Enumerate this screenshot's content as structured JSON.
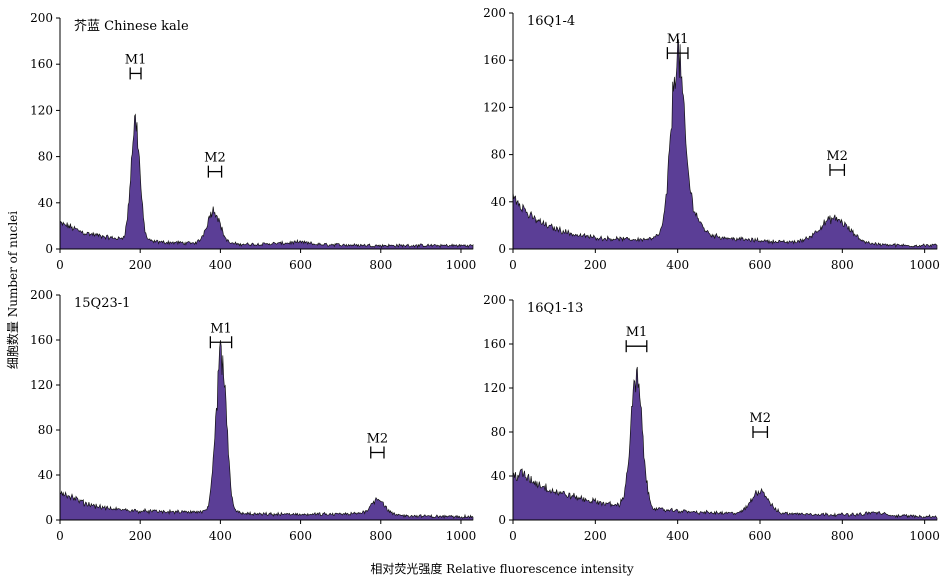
{
  "figure": {
    "ylabel": "细胞数量 Number of nuclei",
    "xlabel": "相对荧光强度 Relative fluorescence intensity"
  },
  "chart_data": [
    {
      "type": "area",
      "title": "芥蓝 Chinese kale",
      "xlim": [
        0,
        1030
      ],
      "ylim": [
        0,
        200
      ],
      "xticks": [
        0,
        200,
        400,
        600,
        800,
        1000
      ],
      "yticks": [
        0,
        40,
        80,
        120,
        160,
        200
      ],
      "fill_color": "#5b3e96",
      "peaks": [
        {
          "x": 188,
          "height": 103,
          "width": 11
        },
        {
          "x": 383,
          "height": 29,
          "width": 16
        }
      ],
      "baseline": [
        [
          0,
          22
        ],
        [
          20,
          20
        ],
        [
          60,
          14
        ],
        [
          120,
          10
        ],
        [
          170,
          8
        ],
        [
          250,
          6
        ],
        [
          330,
          5
        ],
        [
          480,
          4
        ],
        [
          560,
          5
        ],
        [
          600,
          6
        ],
        [
          640,
          4
        ],
        [
          800,
          3
        ],
        [
          900,
          3
        ],
        [
          1030,
          3
        ]
      ],
      "gates": [
        {
          "label": "M1",
          "x_start": 175,
          "x_end": 202,
          "y": 152
        },
        {
          "label": "M2",
          "x_start": 370,
          "x_end": 403,
          "y": 67
        }
      ]
    },
    {
      "type": "area",
      "title": "16Q1-4",
      "xlim": [
        0,
        1030
      ],
      "ylim": [
        0,
        200
      ],
      "xticks": [
        0,
        200,
        400,
        600,
        800,
        1000
      ],
      "yticks": [
        0,
        40,
        80,
        120,
        160,
        200
      ],
      "fill_color": "#5b3e96",
      "peaks": [
        {
          "x": 399,
          "height": 132,
          "width": 15
        },
        {
          "x": 418,
          "height": 30,
          "width": 28
        },
        {
          "x": 780,
          "height": 21,
          "width": 36
        }
      ],
      "baseline": [
        [
          0,
          46
        ],
        [
          15,
          40
        ],
        [
          40,
          28
        ],
        [
          80,
          20
        ],
        [
          150,
          12
        ],
        [
          220,
          9
        ],
        [
          300,
          8
        ],
        [
          360,
          9
        ],
        [
          500,
          10
        ],
        [
          560,
          8
        ],
        [
          650,
          6
        ],
        [
          720,
          5
        ],
        [
          860,
          4
        ],
        [
          950,
          3
        ],
        [
          1030,
          3
        ]
      ],
      "gates": [
        {
          "label": "M1",
          "x_start": 375,
          "x_end": 425,
          "y": 166
        },
        {
          "label": "M2",
          "x_start": 770,
          "x_end": 805,
          "y": 67
        }
      ]
    },
    {
      "type": "area",
      "title": "15Q23-1",
      "xlim": [
        0,
        1030
      ],
      "ylim": [
        0,
        200
      ],
      "xticks": [
        0,
        200,
        400,
        600,
        800,
        1000
      ],
      "yticks": [
        0,
        40,
        80,
        120,
        160,
        200
      ],
      "fill_color": "#5b3e96",
      "peaks": [
        {
          "x": 402,
          "height": 138,
          "width": 13
        },
        {
          "x": 793,
          "height": 14,
          "width": 16
        }
      ],
      "baseline": [
        [
          0,
          26
        ],
        [
          20,
          22
        ],
        [
          60,
          15
        ],
        [
          120,
          10
        ],
        [
          200,
          8
        ],
        [
          300,
          7
        ],
        [
          380,
          7
        ],
        [
          500,
          5
        ],
        [
          600,
          5
        ],
        [
          700,
          5
        ],
        [
          760,
          6
        ],
        [
          850,
          4
        ],
        [
          950,
          3
        ],
        [
          1030,
          3
        ]
      ],
      "gates": [
        {
          "label": "M1",
          "x_start": 375,
          "x_end": 428,
          "y": 158
        },
        {
          "label": "M2",
          "x_start": 775,
          "x_end": 808,
          "y": 60
        }
      ]
    },
    {
      "type": "area",
      "title": "16Q1-13",
      "xlim": [
        0,
        1030
      ],
      "ylim": [
        0,
        200
      ],
      "xticks": [
        0,
        200,
        400,
        600,
        800,
        1000
      ],
      "yticks": [
        0,
        40,
        80,
        120,
        160,
        200
      ],
      "fill_color": "#5b3e96",
      "peaks": [
        {
          "x": 300,
          "height": 116,
          "width": 14
        },
        {
          "x": 600,
          "height": 21,
          "width": 20
        }
      ],
      "baseline": [
        [
          0,
          40
        ],
        [
          20,
          42
        ],
        [
          50,
          35
        ],
        [
          100,
          26
        ],
        [
          180,
          18
        ],
        [
          240,
          14
        ],
        [
          340,
          10
        ],
        [
          450,
          7
        ],
        [
          540,
          6
        ],
        [
          650,
          6
        ],
        [
          760,
          5
        ],
        [
          840,
          5
        ],
        [
          880,
          7
        ],
        [
          920,
          4
        ],
        [
          1030,
          3
        ]
      ],
      "gates": [
        {
          "label": "M1",
          "x_start": 275,
          "x_end": 325,
          "y": 158
        },
        {
          "label": "M2",
          "x_start": 583,
          "x_end": 618,
          "y": 80
        }
      ]
    }
  ]
}
